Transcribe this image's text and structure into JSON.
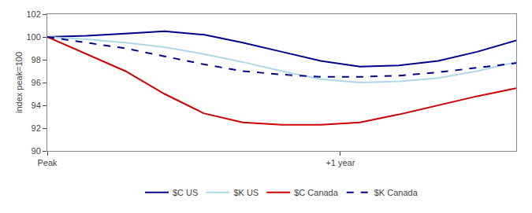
{
  "chart_data": {
    "type": "line",
    "x": [
      0,
      1,
      2,
      3,
      4,
      5,
      6,
      7,
      8,
      9,
      10,
      11,
      12
    ],
    "series": [
      {
        "name": "$C US",
        "color": "#00008B",
        "line_style": "solid",
        "values": [
          100.0,
          100.1,
          100.3,
          100.5,
          100.2,
          99.5,
          98.7,
          97.9,
          97.4,
          97.5,
          97.9,
          98.7,
          99.7
        ]
      },
      {
        "name": "$K US",
        "color": "#ADD8E6",
        "line_style": "solid",
        "values": [
          100.0,
          99.8,
          99.5,
          99.1,
          98.5,
          97.8,
          97.0,
          96.3,
          96.0,
          96.1,
          96.4,
          97.0,
          97.8
        ]
      },
      {
        "name": "$C Canada",
        "color": "#CC0000",
        "line_style": "solid",
        "values": [
          100.0,
          98.5,
          97.0,
          95.0,
          93.3,
          92.5,
          92.3,
          92.3,
          92.5,
          93.2,
          94.0,
          94.8,
          95.5
        ]
      },
      {
        "name": "$K Canada",
        "color": "#00008B",
        "line_style": "dashed",
        "values": [
          100.0,
          99.5,
          99.0,
          98.3,
          97.6,
          97.0,
          96.7,
          96.5,
          96.5,
          96.6,
          96.9,
          97.3,
          97.7
        ]
      }
    ],
    "xlim": [
      0,
      12
    ],
    "xticks": [
      {
        "value": 0,
        "label": "Peak"
      },
      {
        "value": 7.5,
        "label": "+1 year"
      }
    ],
    "ylim": [
      90,
      102
    ],
    "yticks": [
      90,
      92,
      94,
      96,
      98,
      100,
      102
    ],
    "y_label": "index peak=100",
    "grid": false,
    "legend": "bottom"
  }
}
